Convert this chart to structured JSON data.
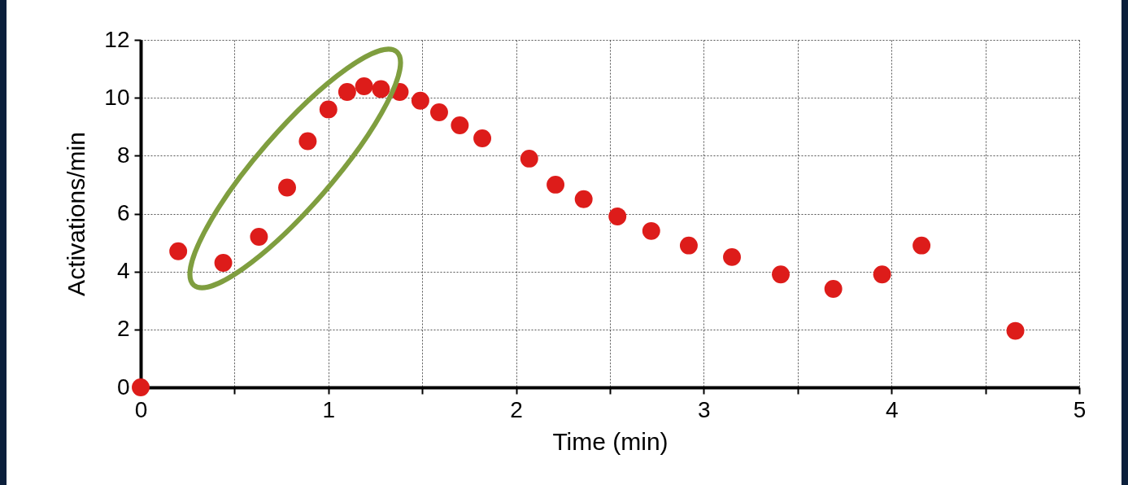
{
  "chart_data": {
    "type": "scatter",
    "xlabel": "Time (min)",
    "ylabel": "Activations/min",
    "x": [
      0,
      0.2,
      0.44,
      0.63,
      0.78,
      0.89,
      1.0,
      1.1,
      1.19,
      1.28,
      1.38,
      1.49,
      1.59,
      1.7,
      1.82,
      2.07,
      2.21,
      2.36,
      2.54,
      2.72,
      2.92,
      3.15,
      3.41,
      3.69,
      3.95,
      4.16,
      4.66
    ],
    "series": [
      {
        "color": "#dd1c1a",
        "values": [
          0,
          4.7,
          4.3,
          5.2,
          6.9,
          8.5,
          9.6,
          10.2,
          10.4,
          10.3,
          10.2,
          9.9,
          9.5,
          9.05,
          8.6,
          7.9,
          7.0,
          6.5,
          5.9,
          5.4,
          4.9,
          4.5,
          3.9,
          3.4,
          3.9,
          4.9,
          1.95
        ]
      }
    ],
    "xlim": [
      0,
      5
    ],
    "xticks": [
      0,
      {
        "value": 0.5,
        "label": null
      },
      1,
      {
        "value": 1.5,
        "label": null
      },
      2,
      {
        "value": 2.5,
        "label": null
      },
      3,
      {
        "value": 3.5,
        "label": null
      },
      4,
      {
        "value": 4.5,
        "label": null
      },
      5
    ],
    "ylim": [
      0,
      12
    ],
    "yticks": [
      0,
      2,
      4,
      6,
      8,
      10,
      12
    ],
    "grid": true,
    "marker": "circle"
  }
}
